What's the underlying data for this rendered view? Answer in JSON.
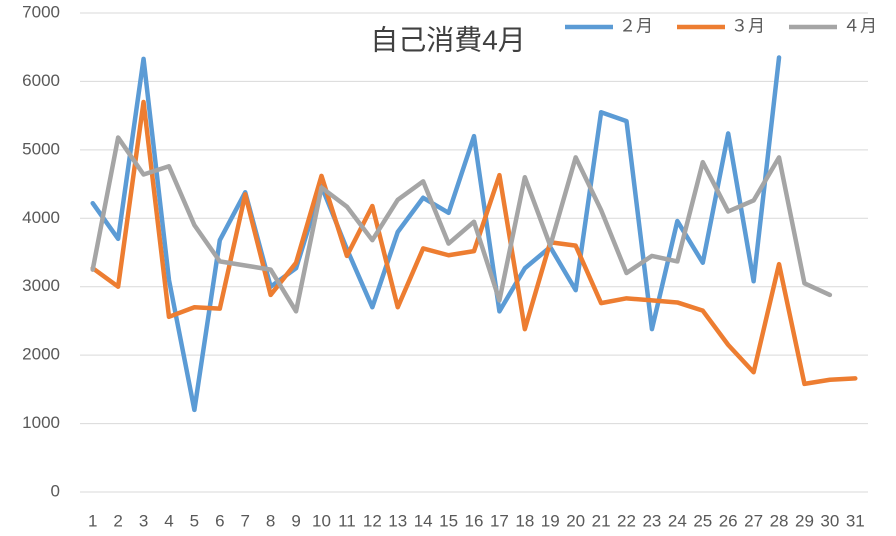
{
  "chart_data": {
    "type": "line",
    "title": "自己消費4月",
    "categories": [
      "1",
      "2",
      "3",
      "4",
      "5",
      "6",
      "7",
      "8",
      "9",
      "10",
      "11",
      "12",
      "13",
      "14",
      "15",
      "16",
      "17",
      "18",
      "19",
      "20",
      "21",
      "22",
      "23",
      "24",
      "25",
      "26",
      "27",
      "28",
      "29",
      "30",
      "31"
    ],
    "series": [
      {
        "name": "２月",
        "color": "#5b9bd5",
        "values": [
          4220,
          3700,
          6330,
          3100,
          1200,
          3680,
          4380,
          3000,
          3270,
          4470,
          3550,
          2700,
          3800,
          4300,
          4080,
          5200,
          2640,
          3270,
          3580,
          2950,
          5550,
          5420,
          2380,
          3960,
          3350,
          5240,
          3080,
          6350,
          null,
          null,
          null
        ]
      },
      {
        "name": "３月",
        "color": "#ed7d31",
        "values": [
          3270,
          3000,
          5700,
          2560,
          2700,
          2680,
          4350,
          2880,
          3350,
          4620,
          3450,
          4180,
          2700,
          3560,
          3460,
          3520,
          4630,
          2380,
          3650,
          3600,
          2760,
          2830,
          2800,
          2770,
          2650,
          2150,
          1750,
          3330,
          1580,
          1640,
          1660
        ]
      },
      {
        "name": "４月",
        "color": "#a5a5a5",
        "values": [
          3250,
          5180,
          4640,
          4760,
          3900,
          3370,
          3310,
          3250,
          2640,
          4450,
          4170,
          3680,
          4270,
          4540,
          3630,
          3950,
          2800,
          4600,
          3600,
          4890,
          4120,
          3200,
          3450,
          3370,
          4820,
          4100,
          4260,
          4890,
          3050,
          2880,
          null
        ]
      }
    ],
    "ylim": [
      0,
      7000
    ],
    "yticks": [
      0,
      1000,
      2000,
      3000,
      4000,
      5000,
      6000,
      7000
    ],
    "grid": true,
    "legend": "top-right"
  }
}
